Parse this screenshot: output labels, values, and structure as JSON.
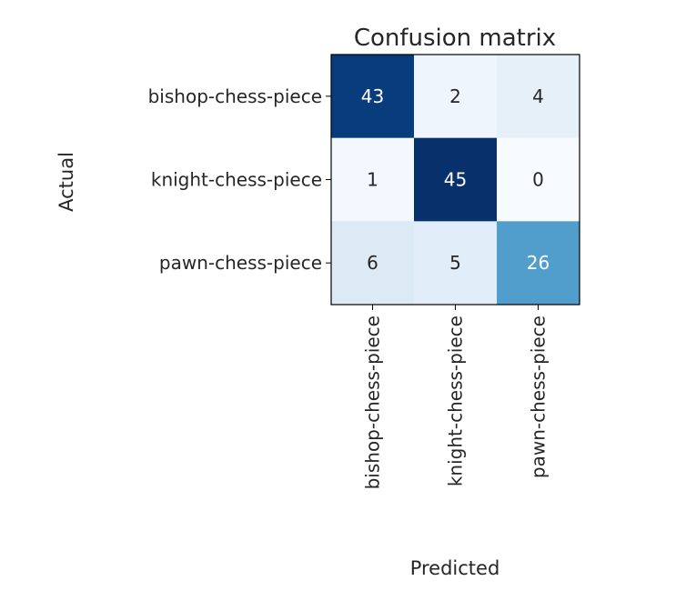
{
  "chart_data": {
    "type": "heatmap",
    "title": "Confusion matrix",
    "xlabel": "Predicted",
    "ylabel": "Actual",
    "x_categories": [
      "bishop-chess-piece",
      "knight-chess-piece",
      "pawn-chess-piece"
    ],
    "y_categories": [
      "bishop-chess-piece",
      "knight-chess-piece",
      "pawn-chess-piece"
    ],
    "values": [
      [
        43,
        2,
        4
      ],
      [
        1,
        45,
        0
      ],
      [
        6,
        5,
        26
      ]
    ],
    "colormap": "Blues",
    "value_range": [
      0,
      45
    ],
    "grid": false
  }
}
